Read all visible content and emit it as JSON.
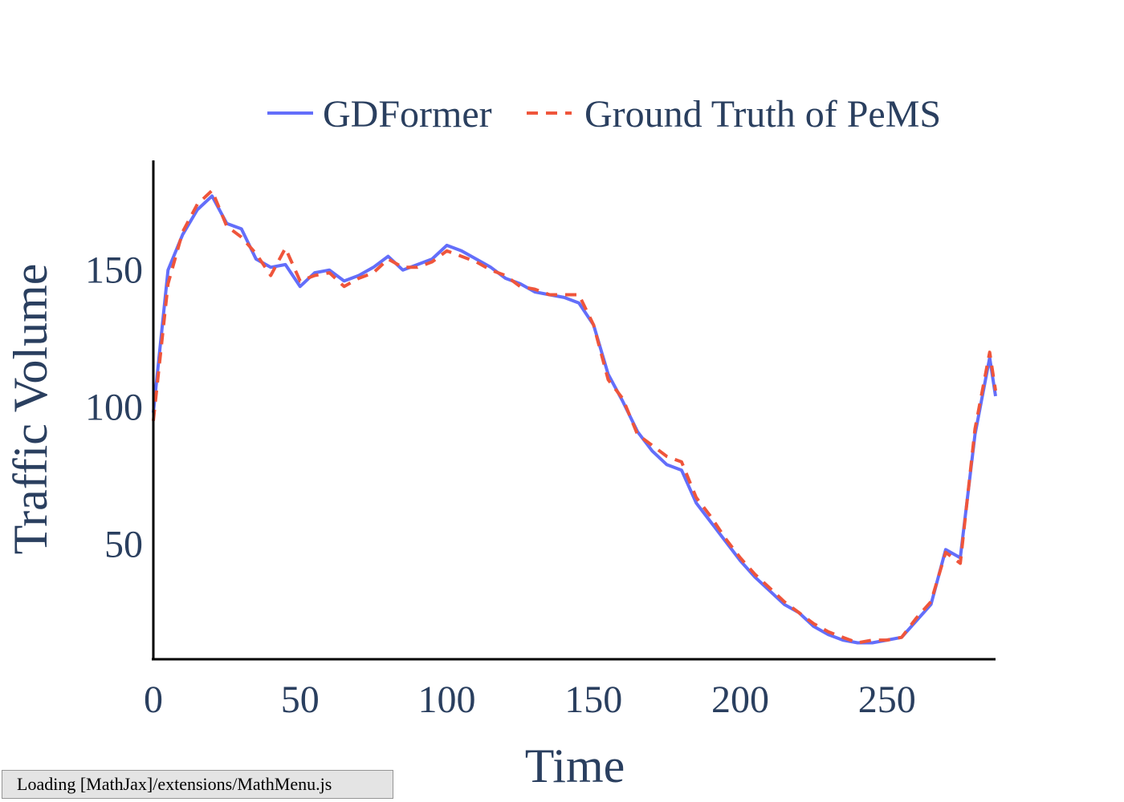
{
  "chart_data": {
    "type": "line",
    "title": "",
    "xlabel": "Time",
    "ylabel": "Traffic Volume",
    "xlim": [
      0,
      287
    ],
    "ylim": [
      8,
      190
    ],
    "xticks": [
      0,
      50,
      100,
      150,
      200,
      250
    ],
    "yticks": [
      50,
      100,
      150
    ],
    "grid": false,
    "legend_position": "top-right",
    "x": [
      0,
      5,
      10,
      15,
      20,
      25,
      30,
      35,
      40,
      45,
      50,
      55,
      60,
      65,
      70,
      75,
      80,
      85,
      90,
      95,
      100,
      105,
      110,
      115,
      120,
      125,
      130,
      135,
      140,
      145,
      150,
      155,
      160,
      165,
      170,
      175,
      180,
      185,
      190,
      195,
      200,
      205,
      210,
      215,
      220,
      225,
      230,
      235,
      240,
      245,
      250,
      255,
      260,
      265,
      270,
      275,
      280,
      285,
      287
    ],
    "series": [
      {
        "name": "GDFormer",
        "color": "#636efa",
        "dash": "solid",
        "values": [
          98,
          150,
          163,
          172,
          177,
          167,
          165,
          154,
          151,
          152,
          144,
          149,
          150,
          146,
          148,
          151,
          155,
          150,
          152,
          154,
          159,
          157,
          154,
          151,
          147,
          145,
          142,
          141,
          140,
          138,
          130,
          112,
          102,
          91,
          84,
          79,
          77,
          65,
          58,
          51,
          44,
          38,
          33,
          28,
          25,
          20,
          17,
          15,
          14,
          14,
          15,
          16,
          22,
          28,
          48,
          45,
          90,
          118,
          104
        ]
      },
      {
        "name": "Ground Truth of PeMS",
        "color": "#ef553b",
        "dash": "dashed",
        "values": [
          95,
          145,
          164,
          174,
          179,
          166,
          162,
          156,
          148,
          158,
          146,
          148,
          149,
          144,
          147,
          149,
          154,
          151,
          151,
          153,
          157,
          155,
          153,
          150,
          148,
          144,
          143,
          141,
          141,
          141,
          130,
          110,
          103,
          90,
          86,
          82,
          80,
          67,
          60,
          52,
          45,
          39,
          34,
          29,
          25,
          21,
          18,
          16,
          14,
          15,
          15,
          16,
          23,
          29,
          47,
          43,
          92,
          120,
          106
        ]
      }
    ]
  },
  "status": {
    "text": "Loading [MathJax]/extensions/MathMenu.js"
  }
}
